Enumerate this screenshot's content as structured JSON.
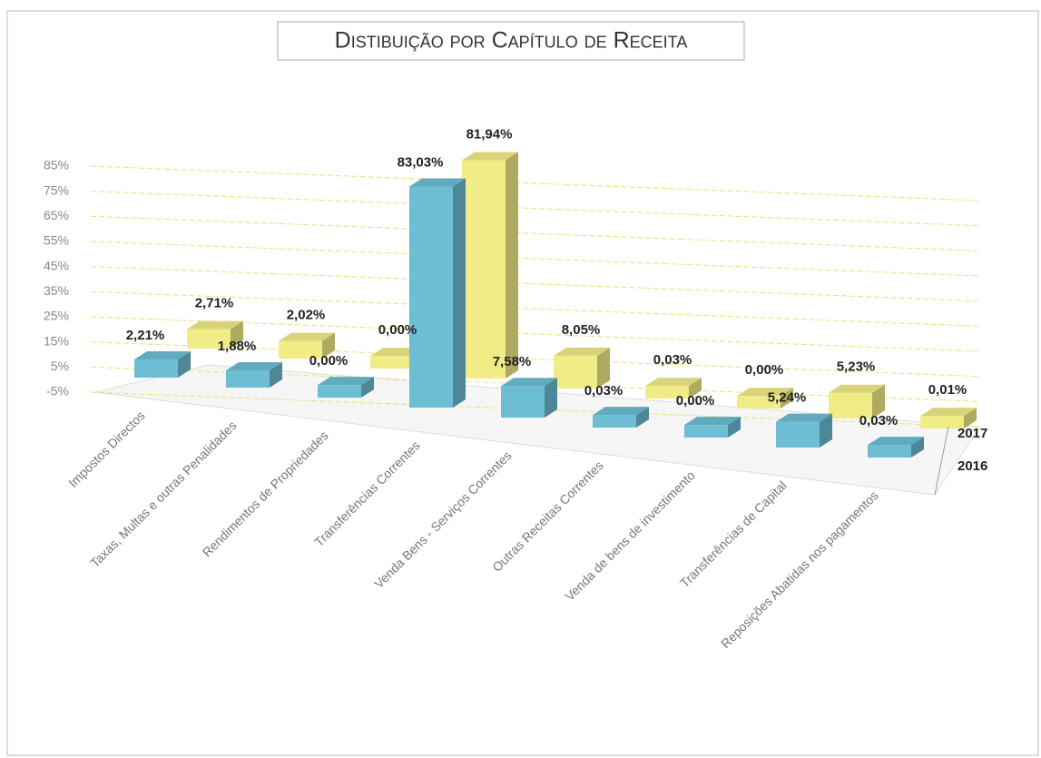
{
  "chart_data": {
    "type": "bar3d",
    "title": "Distibuição por Capítulo de Receita",
    "categories": [
      "Impostos Directos",
      "Taxas, Multas e outras Penalidades",
      "Rendimentos de Propriedades",
      "Transferências Correntes",
      "Venda Bens - Serviços Correntes",
      "Outras Receitas Correntes",
      "Venda de bens de investimento",
      "Transferências de Capital",
      "Reposições Abatidas nos pagamentos"
    ],
    "series": [
      {
        "name": "2016",
        "color": "#6dbdd3",
        "values": [
          2.21,
          1.88,
          0.0,
          83.03,
          7.58,
          0.03,
          0.0,
          5.24,
          0.03
        ],
        "value_labels": [
          "2,21%",
          "1,88%",
          "0,00%",
          "83,03%",
          "7,58%",
          "0,03%",
          "0,00%",
          "5,24%",
          "0,03%"
        ]
      },
      {
        "name": "2017",
        "color": "#f1ec86",
        "values": [
          2.71,
          2.02,
          0.0,
          81.94,
          8.05,
          0.03,
          0.0,
          5.23,
          0.01
        ],
        "value_labels": [
          "2,71%",
          "2,02%",
          "0,00%",
          "81,94%",
          "8,05%",
          "0,03%",
          "0,00%",
          "5,23%",
          "0,01%"
        ]
      }
    ],
    "ylim": [
      -5,
      85
    ],
    "yticks": [
      {
        "value": -5,
        "label": "-5%"
      },
      {
        "value": 5,
        "label": "5%"
      },
      {
        "value": 15,
        "label": "15%"
      },
      {
        "value": 25,
        "label": "25%"
      },
      {
        "value": 35,
        "label": "35%"
      },
      {
        "value": 45,
        "label": "45%"
      },
      {
        "value": 55,
        "label": "55%"
      },
      {
        "value": 65,
        "label": "65%"
      },
      {
        "value": 75,
        "label": "75%"
      },
      {
        "value": 85,
        "label": "85%"
      }
    ],
    "grid": true
  }
}
